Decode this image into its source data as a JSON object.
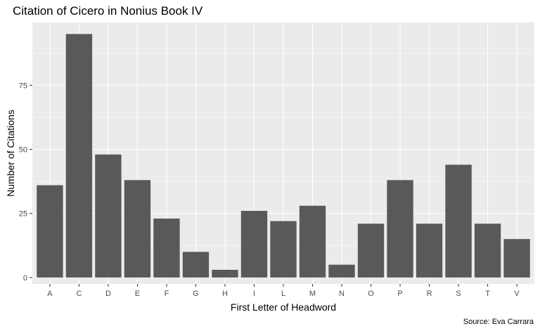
{
  "chart_data": {
    "type": "bar",
    "title": "Citation of Cicero in Nonius Book IV",
    "xlabel": "First Letter of Headword",
    "ylabel": "Number of Citations",
    "caption": "Source: Eva Carrara",
    "categories": [
      "A",
      "C",
      "D",
      "E",
      "F",
      "G",
      "H",
      "I",
      "L",
      "M",
      "N",
      "O",
      "P",
      "R",
      "S",
      "T",
      "V"
    ],
    "values": [
      36,
      95,
      48,
      38,
      23,
      10,
      3,
      26,
      22,
      28,
      5,
      21,
      38,
      21,
      44,
      21,
      15
    ],
    "ylim": [
      -2.5,
      99.5
    ],
    "yticks": [
      0,
      25,
      50,
      75
    ],
    "grid": true,
    "legend": "none",
    "colors": {
      "bar": "#595959",
      "panel": "#ebebeb",
      "grid_major": "#ffffff",
      "tick": "#333333"
    }
  }
}
